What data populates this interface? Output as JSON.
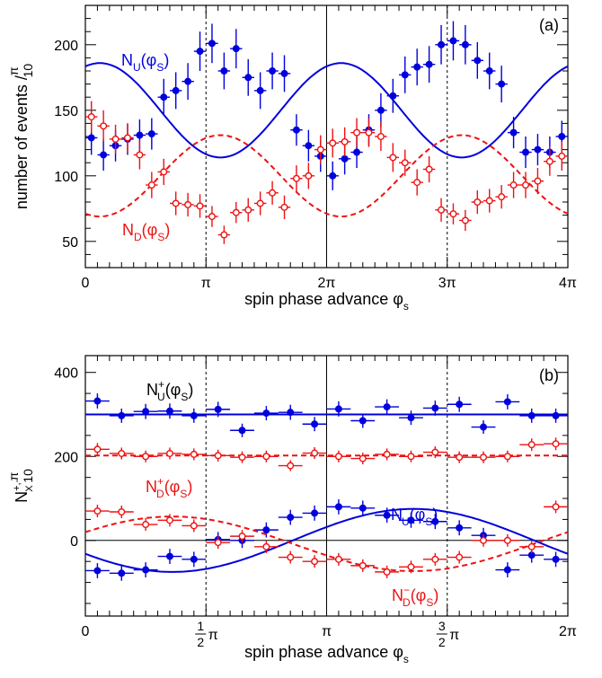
{
  "chart_data": [
    {
      "type": "scatter",
      "panel_label": "(a)",
      "xlabel_main": "spin phase advance φ",
      "xlabel_sub": "s",
      "ylabel_main": "number of events /",
      "ylabel_frac_num": "π",
      "ylabel_frac_den": "10",
      "xlim": [
        0,
        40
      ],
      "ylim": [
        30,
        230
      ],
      "xtick_unit": "π",
      "xticks": [
        {
          "x": 0,
          "label": "0"
        },
        {
          "x": 10,
          "label": "π"
        },
        {
          "x": 20,
          "label": "2π"
        },
        {
          "x": 30,
          "label": "3π"
        },
        {
          "x": 40,
          "label": "4π"
        }
      ],
      "yticks": [
        50,
        100,
        150,
        200
      ],
      "vlines": [
        {
          "x": 10,
          "style": "dashed"
        },
        {
          "x": 20,
          "style": "solid"
        },
        {
          "x": 30,
          "style": "dashed"
        }
      ],
      "series": [
        {
          "name": "N_U(φ_S)",
          "label_main": "N",
          "label_sub": "U",
          "label_rest": "(φ",
          "label_sub2": "S",
          "label_close": ")",
          "color": "#0000dd",
          "marker": "filled",
          "curve_style": "solid",
          "fit": {
            "mean": 150,
            "amp": -36,
            "period": 20,
            "phase": 1.2
          },
          "x": [
            0.5,
            1.5,
            2.5,
            3.5,
            4.5,
            5.5,
            6.5,
            7.5,
            8.5,
            9.5,
            10.5,
            11.5,
            12.5,
            13.5,
            14.5,
            15.5,
            16.5,
            17.5,
            18.5,
            19.5,
            20.5,
            21.5,
            22.5,
            23.5,
            24.5,
            25.5,
            26.5,
            27.5,
            28.5,
            29.5,
            30.5,
            31.5,
            32.5,
            33.5,
            34.5,
            35.5,
            36.5,
            37.5,
            38.5,
            39.5
          ],
          "y": [
            129,
            116,
            123,
            128,
            131,
            132,
            160,
            165,
            172,
            195,
            201,
            180,
            197,
            175,
            165,
            180,
            178,
            135,
            123,
            115,
            100,
            113,
            118,
            135,
            150,
            161,
            177,
            183,
            185,
            200,
            203,
            200,
            188,
            180,
            170,
            133,
            118,
            120,
            118,
            130
          ],
          "err": [
            13,
            12,
            12,
            12,
            12,
            12,
            14,
            14,
            14,
            15,
            15,
            14,
            15,
            14,
            14,
            14,
            14,
            12,
            12,
            12,
            11,
            12,
            12,
            12,
            13,
            13,
            14,
            14,
            14,
            15,
            15,
            15,
            14,
            14,
            14,
            12,
            12,
            12,
            12,
            12
          ]
        },
        {
          "name": "N_D(φ_S)",
          "label_main": "N",
          "label_sub": "D",
          "label_rest": "(φ",
          "label_sub2": "S",
          "label_close": ")",
          "color": "#ee1111",
          "marker": "open",
          "curve_style": "dashed",
          "fit": {
            "mean": 100,
            "amp": 31,
            "period": 20,
            "phase": 1.2
          },
          "x": [
            0.5,
            1.5,
            2.5,
            3.5,
            4.5,
            5.5,
            6.5,
            7.5,
            8.5,
            9.5,
            10.5,
            11.5,
            12.5,
            13.5,
            14.5,
            15.5,
            16.5,
            17.5,
            18.5,
            19.5,
            20.5,
            21.5,
            22.5,
            23.5,
            24.5,
            25.5,
            26.5,
            27.5,
            28.5,
            29.5,
            30.5,
            31.5,
            32.5,
            33.5,
            34.5,
            35.5,
            36.5,
            37.5,
            38.5,
            39.5
          ],
          "y": [
            145,
            138,
            128,
            129,
            116,
            93,
            103,
            79,
            78,
            77,
            69,
            55,
            72,
            74,
            79,
            87,
            76,
            98,
            100,
            120,
            125,
            126,
            133,
            133,
            130,
            114,
            110,
            95,
            105,
            74,
            71,
            66,
            80,
            81,
            84,
            93,
            93,
            96,
            111,
            115
          ],
          "err": [
            12,
            12,
            11,
            11,
            11,
            10,
            10,
            9,
            9,
            9,
            8,
            7,
            8,
            9,
            9,
            9,
            9,
            10,
            10,
            11,
            11,
            11,
            11,
            11,
            11,
            11,
            10,
            10,
            10,
            9,
            8,
            8,
            9,
            9,
            9,
            10,
            10,
            10,
            11,
            11
          ]
        }
      ]
    },
    {
      "type": "scatter",
      "panel_label": "(b)",
      "xlabel_main": "spin phase advance φ",
      "xlabel_sub": "s",
      "ylabel_main": "N",
      "ylabel_sup": "+,-",
      "ylabel_sub": "X",
      "ylabel_frac_num": "π",
      "ylabel_frac_den": "10",
      "xlim": [
        0,
        20
      ],
      "ylim": [
        -180,
        440
      ],
      "xticks": [
        {
          "x": 0,
          "label": "0"
        },
        {
          "x": 5,
          "label": "",
          "frac_num": "1",
          "frac_den": "2",
          "unit": "π"
        },
        {
          "x": 10,
          "label": "π"
        },
        {
          "x": 15,
          "label": "",
          "frac_num": "3",
          "frac_den": "2",
          "unit": "π"
        },
        {
          "x": 20,
          "label": "2π"
        }
      ],
      "yticks": [
        0,
        200,
        400
      ],
      "hlines": [
        {
          "y": 0,
          "style": "solid"
        }
      ],
      "vlines": [
        {
          "x": 5,
          "style": "dashed"
        },
        {
          "x": 10,
          "style": "solid"
        },
        {
          "x": 15,
          "style": "dashed"
        }
      ],
      "series": [
        {
          "name": "N+_U(φ_S)",
          "label_main": "N",
          "label_sup": "+",
          "label_sub": "U",
          "label_rest": "(φ",
          "label_sub2": "S",
          "label_close": ")",
          "color": "#0000dd",
          "marker": "filled",
          "curve_style": "solid",
          "fit": {
            "mean": 300,
            "amp": 0,
            "period": 20,
            "phase": 0
          },
          "x": [
            0.5,
            1.5,
            2.5,
            3.5,
            4.5,
            5.5,
            6.5,
            7.5,
            8.5,
            9.5,
            10.5,
            11.5,
            12.5,
            13.5,
            14.5,
            15.5,
            16.5,
            17.5,
            18.5,
            19.5
          ],
          "y": [
            332,
            297,
            307,
            308,
            297,
            312,
            262,
            303,
            305,
            277,
            313,
            285,
            318,
            292,
            315,
            324,
            270,
            330,
            297,
            297
          ],
          "err": [
            18,
            17,
            18,
            18,
            17,
            18,
            16,
            17,
            18,
            17,
            18,
            17,
            18,
            17,
            18,
            18,
            16,
            18,
            17,
            17
          ]
        },
        {
          "name": "N+_D(φ_S)",
          "label_main": "N",
          "label_sup": "+",
          "label_sub": "D",
          "label_rest": "(φ",
          "label_sub2": "S",
          "label_close": ")",
          "color": "#ee1111",
          "marker": "open",
          "curve_style": "dashed",
          "fit": {
            "mean": 202,
            "amp": 0,
            "period": 20,
            "phase": 0
          },
          "x": [
            0.5,
            1.5,
            2.5,
            3.5,
            4.5,
            5.5,
            6.5,
            7.5,
            8.5,
            9.5,
            10.5,
            11.5,
            12.5,
            13.5,
            14.5,
            15.5,
            16.5,
            17.5,
            18.5,
            19.5
          ],
          "y": [
            217,
            207,
            200,
            207,
            205,
            202,
            198,
            200,
            178,
            208,
            200,
            195,
            205,
            200,
            210,
            198,
            198,
            200,
            228,
            230
          ],
          "err": [
            15,
            14,
            14,
            14,
            14,
            14,
            14,
            14,
            13,
            14,
            14,
            14,
            14,
            14,
            14,
            14,
            14,
            14,
            15,
            15
          ]
        },
        {
          "name": "N-_U(φ_S)",
          "label_main": "N",
          "label_sup": "−",
          "label_sub": "U",
          "label_rest": "(φ",
          "label_sub2": "S",
          "label_close": ")",
          "color": "#0000dd",
          "marker": "filled",
          "curve_style": "solid",
          "fit": {
            "mean": 0,
            "amp": 75,
            "period": 20,
            "phase": 3.6
          },
          "x": [
            0.5,
            1.5,
            2.5,
            3.5,
            4.5,
            5.5,
            6.5,
            7.5,
            8.5,
            9.5,
            10.5,
            11.5,
            12.5,
            13.5,
            14.5,
            15.5,
            16.5,
            17.5,
            18.5,
            19.5
          ],
          "y": [
            -72,
            -78,
            -70,
            -38,
            -45,
            2,
            0,
            25,
            55,
            65,
            80,
            77,
            60,
            48,
            45,
            30,
            12,
            -70,
            -35,
            -45
          ],
          "err": [
            18,
            18,
            18,
            18,
            18,
            18,
            18,
            18,
            18,
            18,
            18,
            18,
            18,
            18,
            18,
            18,
            18,
            18,
            18,
            18
          ]
        },
        {
          "name": "N-_D(φ_S)",
          "label_main": "N",
          "label_sup": "−",
          "label_sub": "D",
          "label_rest": "(φ",
          "label_sub2": "S",
          "label_close": ")",
          "color": "#ee1111",
          "marker": "open",
          "curve_style": "dashed",
          "fit": {
            "mean": -8,
            "amp": -65,
            "period": 20,
            "phase": 3.6
          },
          "x": [
            0.5,
            1.5,
            2.5,
            3.5,
            4.5,
            5.5,
            6.5,
            7.5,
            8.5,
            9.5,
            10.5,
            11.5,
            12.5,
            13.5,
            14.5,
            15.5,
            16.5,
            17.5,
            18.5,
            19.5
          ],
          "y": [
            70,
            68,
            38,
            48,
            35,
            -5,
            10,
            -15,
            -40,
            -50,
            -45,
            -60,
            -75,
            -63,
            -45,
            -40,
            0,
            0,
            -15,
            80
          ],
          "err": [
            15,
            15,
            15,
            15,
            15,
            15,
            15,
            15,
            15,
            15,
            15,
            15,
            15,
            15,
            15,
            15,
            15,
            15,
            15,
            15
          ]
        }
      ]
    }
  ]
}
